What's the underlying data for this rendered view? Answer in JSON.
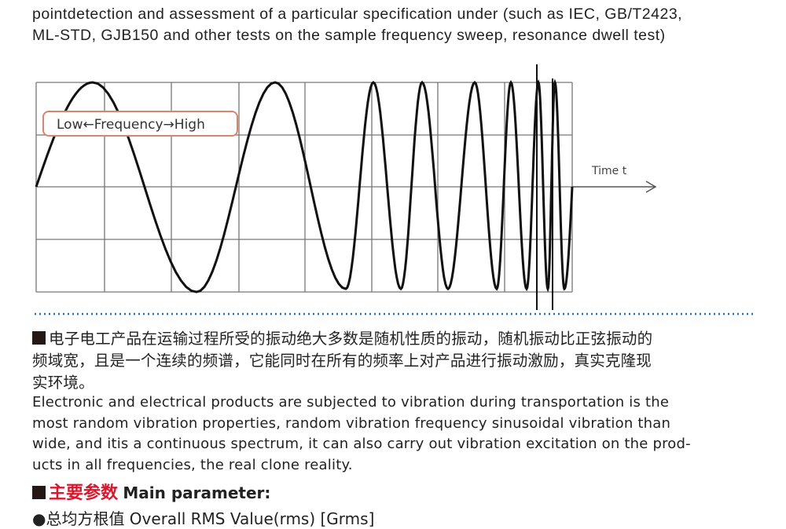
{
  "intro_lines": [
    "pointdetection and assessment of a particular specification under (such as IEC, GB/T2423,",
    "ML-STD, GJB150 and other tests on the sample frequency sweep, resonance dwell test)"
  ],
  "figure": {
    "label": "Low←Frequency→High",
    "axis_label": "Time t",
    "divider_color": "#1f6fd0"
  },
  "random_zh": [
    "电子电工产品在运输过程所受的振动绝大多数是随机性质的振动，随机振动比正弦振动的",
    "频域宽，且是一个连续的频谱，它能同时在所有的频率上对产品进行振动激励，真实克隆现",
    "实环境。"
  ],
  "random_en": [
    "Electronic and electrical products are subjected to vibration during transportation is the",
    "most random vibration properties, random vibration frequency sinusoidal vibration than",
    "wide, and itis a continuous spectrum, it can also carry out vibration excitation on the prod-",
    "ucts in all frequencies, the real clone reality."
  ],
  "main_param": {
    "zh": "主要参数",
    "en": "Main parameter:"
  },
  "first_param": "●总均方根值 Overall RMS Value(rms) [Grms]"
}
